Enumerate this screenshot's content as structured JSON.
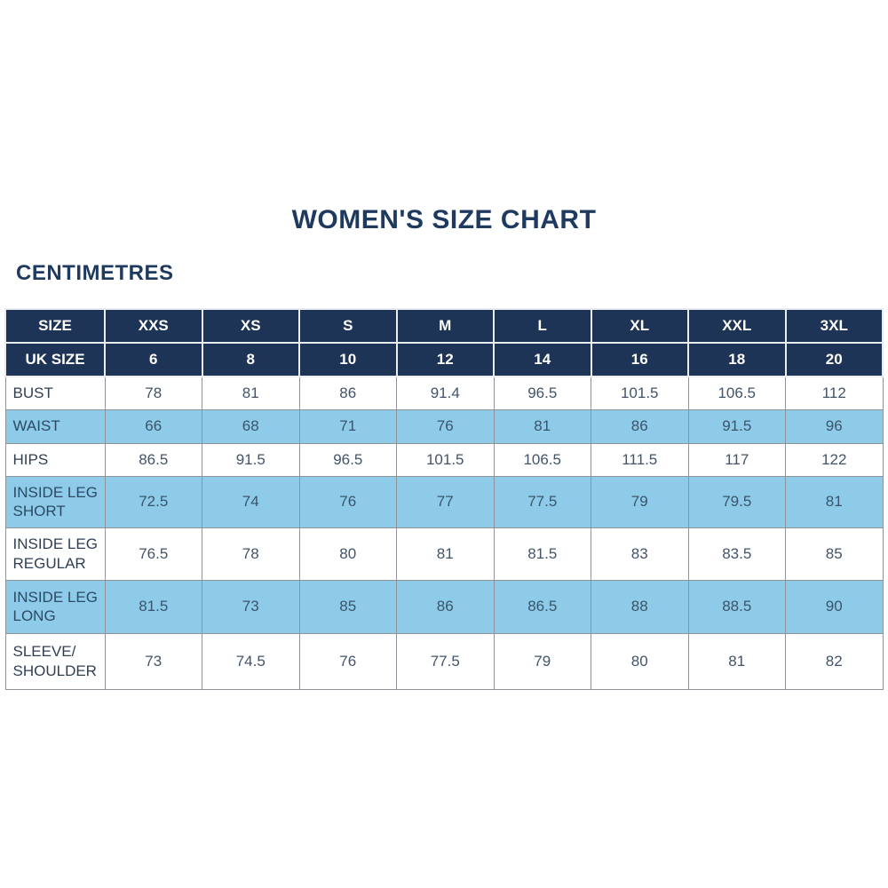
{
  "page": {
    "title": "WOMEN'S SIZE CHART",
    "unit_label": "CENTIMETRES"
  },
  "colors": {
    "header_navy": "#1e3456",
    "highlight_blue": "#8dcbe9",
    "title_navy": "#1e3a5f",
    "body_text": "#43546a",
    "border_gray": "#8d9399"
  },
  "chart_data": {
    "type": "table",
    "title": "WOMEN'S SIZE CHART",
    "unit": "CENTIMETRES",
    "columns": [
      "SIZE",
      "XXS",
      "XS",
      "S",
      "M",
      "L",
      "XL",
      "XXL",
      "3XL"
    ],
    "uk_size_row": {
      "label": "UK SIZE",
      "values": [
        "6",
        "8",
        "10",
        "12",
        "14",
        "16",
        "18",
        "20"
      ]
    },
    "rows": [
      {
        "label": "BUST",
        "values": [
          "78",
          "81",
          "86",
          "91.4",
          "96.5",
          "101.5",
          "106.5",
          "112"
        ],
        "highlight": false
      },
      {
        "label": "WAIST",
        "values": [
          "66",
          "68",
          "71",
          "76",
          "81",
          "86",
          "91.5",
          "96"
        ],
        "highlight": true
      },
      {
        "label": "HIPS",
        "values": [
          "86.5",
          "91.5",
          "96.5",
          "101.5",
          "106.5",
          "111.5",
          "117",
          "122"
        ],
        "highlight": false
      },
      {
        "label": "INSIDE LEG SHORT",
        "values": [
          "72.5",
          "74",
          "76",
          "77",
          "77.5",
          "79",
          "79.5",
          "81"
        ],
        "highlight": true
      },
      {
        "label": "INSIDE LEG REGULAR",
        "values": [
          "76.5",
          "78",
          "80",
          "81",
          "81.5",
          "83",
          "83.5",
          "85"
        ],
        "highlight": false
      },
      {
        "label": "INSIDE LEG LONG",
        "values": [
          "81.5",
          "73",
          "85",
          "86",
          "86.5",
          "88",
          "88.5",
          "90"
        ],
        "highlight": true
      },
      {
        "label": "SLEEVE/​SHOULDER",
        "values": [
          "73",
          "74.5",
          "76",
          "77.5",
          "79",
          "80",
          "81",
          "82"
        ],
        "highlight": false
      }
    ]
  }
}
